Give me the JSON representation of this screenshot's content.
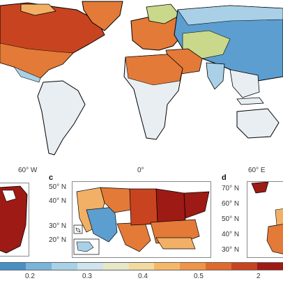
{
  "main_map": {
    "lon_labels": [
      "60° W",
      "0°",
      "60° E"
    ]
  },
  "panel_c": {
    "letter": "c",
    "lat_labels": [
      "50° N",
      "40° N",
      "30° N",
      "20° N"
    ]
  },
  "panel_d": {
    "letter": "d",
    "lat_labels": [
      "70° N",
      "60° N",
      "50° N",
      "40° N",
      "30° N"
    ]
  },
  "colorbar": {
    "tick_labels": [
      "0.2",
      "0.3",
      "0.4",
      "0.5",
      "2"
    ],
    "colors": [
      "#4a8fc4",
      "#7ab4d8",
      "#a8d0e6",
      "#cfe4ec",
      "#e6e8c8",
      "#f2d9a0",
      "#f5b86a",
      "#ef9448",
      "#e06a2e",
      "#c84420",
      "#9e1a14"
    ]
  },
  "palette": {
    "dark_red": "#9e1a14",
    "red": "#c84420",
    "orange": "#e37a38",
    "light_orange": "#f2b066",
    "pale": "#e9eef2",
    "light_blue": "#a9d0e6",
    "blue": "#5c9ecf",
    "green_yellow": "#c9d88a"
  }
}
